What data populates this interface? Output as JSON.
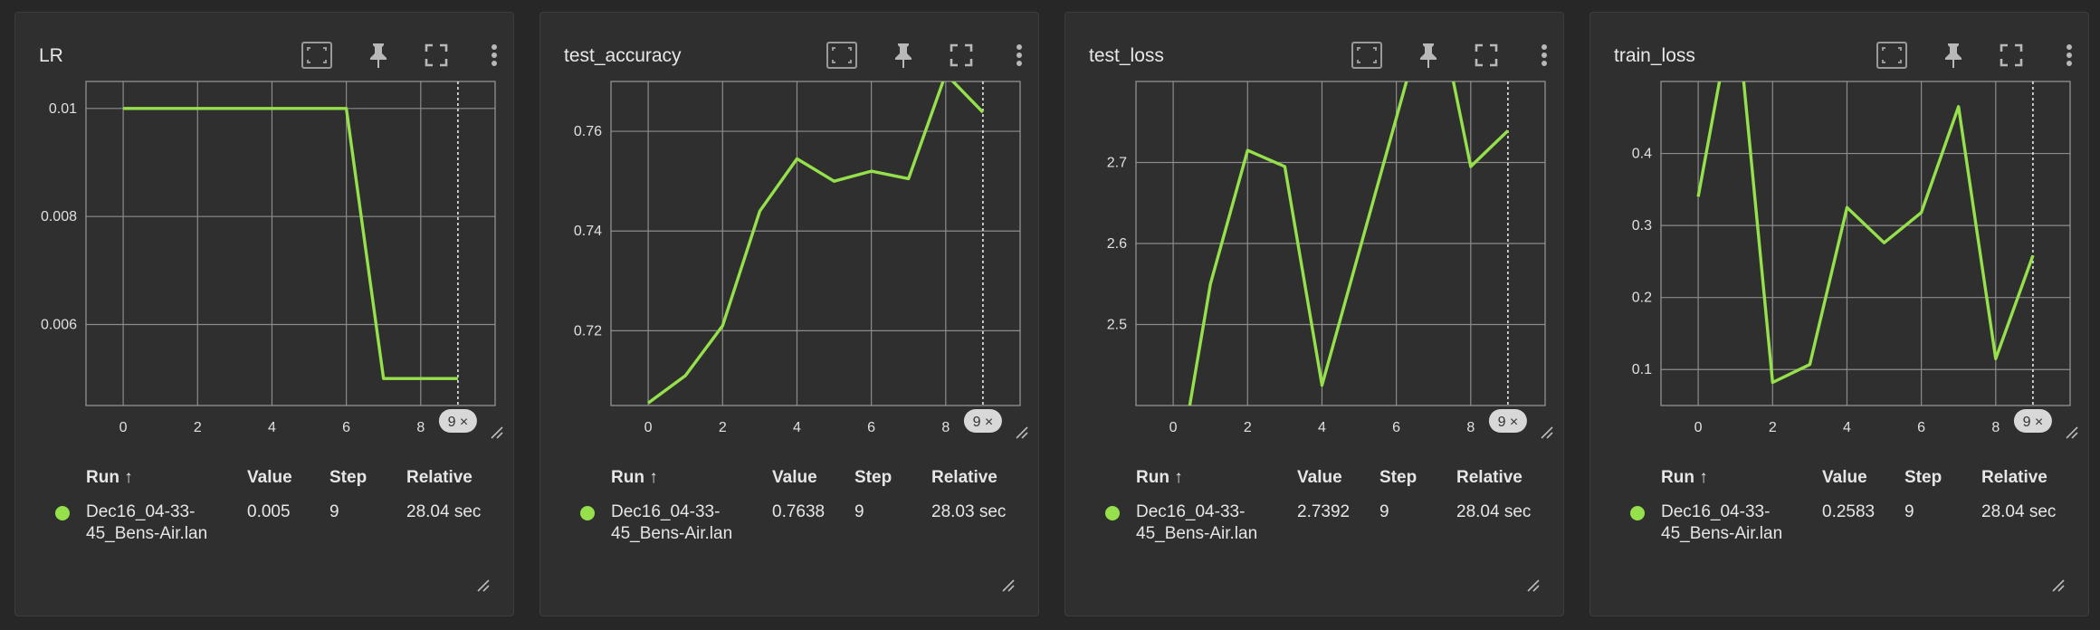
{
  "accent_color": "#95e04b",
  "toolbar_icons": [
    "fit-domain-icon",
    "pin-icon",
    "fullscreen-icon",
    "more-vert-icon"
  ],
  "table_headers": {
    "run": "Run ↑",
    "value": "Value",
    "step": "Step",
    "relative": "Relative"
  },
  "step_badge": "9 ×",
  "cards": [
    {
      "title": "LR",
      "row": {
        "run_line1": "Dec16_04-33-",
        "run_line2": "45_Bens-Air.lan",
        "value": "0.005",
        "step": "9",
        "relative": "28.04 sec"
      }
    },
    {
      "title": "test_accuracy",
      "row": {
        "run_line1": "Dec16_04-33-",
        "run_line2": "45_Bens-Air.lan",
        "value": "0.7638",
        "step": "9",
        "relative": "28.03 sec"
      }
    },
    {
      "title": "test_loss",
      "row": {
        "run_line1": "Dec16_04-33-",
        "run_line2": "45_Bens-Air.lan",
        "value": "2.7392",
        "step": "9",
        "relative": "28.04 sec"
      }
    },
    {
      "title": "train_loss",
      "row": {
        "run_line1": "Dec16_04-33-",
        "run_line2": "45_Bens-Air.lan",
        "value": "0.2583",
        "step": "9",
        "relative": "28.04 sec"
      }
    }
  ],
  "chart_data": [
    {
      "type": "line",
      "x": [
        0,
        1,
        2,
        3,
        4,
        5,
        6,
        7,
        8,
        9
      ],
      "series": [
        {
          "values": [
            0.01,
            0.01,
            0.01,
            0.01,
            0.01,
            0.01,
            0.01,
            0.005,
            0.005,
            0.005
          ]
        }
      ],
      "xticks": [
        0,
        2,
        4,
        6,
        8
      ],
      "xtick_labels": [
        "0",
        "2",
        "4",
        "6",
        "8"
      ],
      "yticks": [
        0.006,
        0.008,
        0.01
      ],
      "ytick_labels": [
        "0.006",
        "0.008",
        "0.01"
      ],
      "xlim": [
        -1,
        10
      ],
      "ylim": [
        0.0045,
        0.0105
      ],
      "grid": true,
      "step_marker": 9
    },
    {
      "type": "line",
      "x": [
        0,
        1,
        2,
        3,
        4,
        5,
        6,
        7,
        8,
        9
      ],
      "series": [
        {
          "values": [
            0.7055,
            0.711,
            0.721,
            0.744,
            0.7545,
            0.75,
            0.752,
            0.7505,
            0.7715,
            0.7638
          ]
        }
      ],
      "xticks": [
        0,
        2,
        4,
        6,
        8
      ],
      "xtick_labels": [
        "0",
        "2",
        "4",
        "6",
        "8"
      ],
      "yticks": [
        0.72,
        0.74,
        0.76
      ],
      "ytick_labels": [
        "0.72",
        "0.74",
        "0.76"
      ],
      "xlim": [
        -1,
        10
      ],
      "ylim": [
        0.705,
        0.77
      ],
      "grid": true,
      "step_marker": 9
    },
    {
      "type": "line",
      "x": [
        0,
        1,
        2,
        3,
        4,
        5,
        6,
        7,
        8,
        9
      ],
      "series": [
        {
          "values": [
            2.28,
            2.55,
            2.715,
            2.695,
            2.425,
            2.59,
            2.755,
            2.92,
            2.695,
            2.7392
          ]
        }
      ],
      "xticks": [
        0,
        2,
        4,
        6,
        8
      ],
      "xtick_labels": [
        "0",
        "2",
        "4",
        "6",
        "8"
      ],
      "yticks": [
        2.5,
        2.6,
        2.7
      ],
      "ytick_labels": [
        "2.5",
        "2.6",
        "2.7"
      ],
      "xlim": [
        -1,
        10
      ],
      "ylim": [
        2.4,
        2.8
      ],
      "grid": true,
      "step_marker": 9
    },
    {
      "type": "line",
      "x": [
        0,
        1,
        2,
        3,
        4,
        5,
        6,
        7,
        8,
        9
      ],
      "series": [
        {
          "values": [
            0.34,
            0.62,
            0.082,
            0.107,
            0.325,
            0.276,
            0.318,
            0.465,
            0.115,
            0.2583
          ]
        }
      ],
      "xticks": [
        0,
        2,
        4,
        6,
        8
      ],
      "xtick_labels": [
        "0",
        "2",
        "4",
        "6",
        "8"
      ],
      "yticks": [
        0.1,
        0.2,
        0.3,
        0.4
      ],
      "ytick_labels": [
        "0.1",
        "0.2",
        "0.3",
        "0.4"
      ],
      "xlim": [
        -1,
        10
      ],
      "ylim": [
        0.05,
        0.5
      ],
      "grid": true,
      "step_marker": 9
    }
  ]
}
